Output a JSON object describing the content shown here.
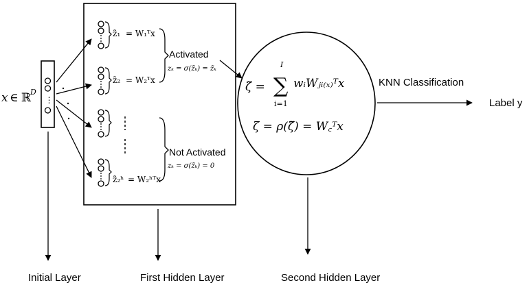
{
  "input": {
    "math_var": "x",
    "math_in": "∈",
    "math_set": "ℝ",
    "math_sup": "D",
    "dots": "⋮"
  },
  "first_hidden": {
    "eq1": {
      "lhs": "z̃₁",
      "rhs": "= W₁ᵀx"
    },
    "eq2": {
      "lhs": "z̃₂",
      "rhs": "= W₂ᵀx"
    },
    "eq3": {
      "lhs": "z̃₂ʰ",
      "rhs": "= W₂ʰᵀx"
    },
    "activated_label": "Activated",
    "activated_formula": "zₖ = σ(z̃ₖ) = z̃ₖ",
    "not_activated_label": "Not Activated",
    "not_activated_formula": "zₖ = σ(z̃ₖ) = 0"
  },
  "second_hidden": {
    "zeta_tilde_lhs": "ζ̃ =",
    "sum_upper": "I",
    "sum_symbol": "∑",
    "sum_lower": "i=1",
    "zeta_tilde_body": "wᵢWⱼᵢ₍ₓ₎ᵀx",
    "zeta_eq": "ζ = ρ(ζ̃) = W꜀ᵀx"
  },
  "classification": {
    "method_label": "KNN Classification",
    "output_label": "Label y"
  },
  "layer_labels": {
    "initial": "Initial Layer",
    "first_hidden": "First Hidden Layer",
    "second_hidden": "Second Hidden Layer"
  }
}
